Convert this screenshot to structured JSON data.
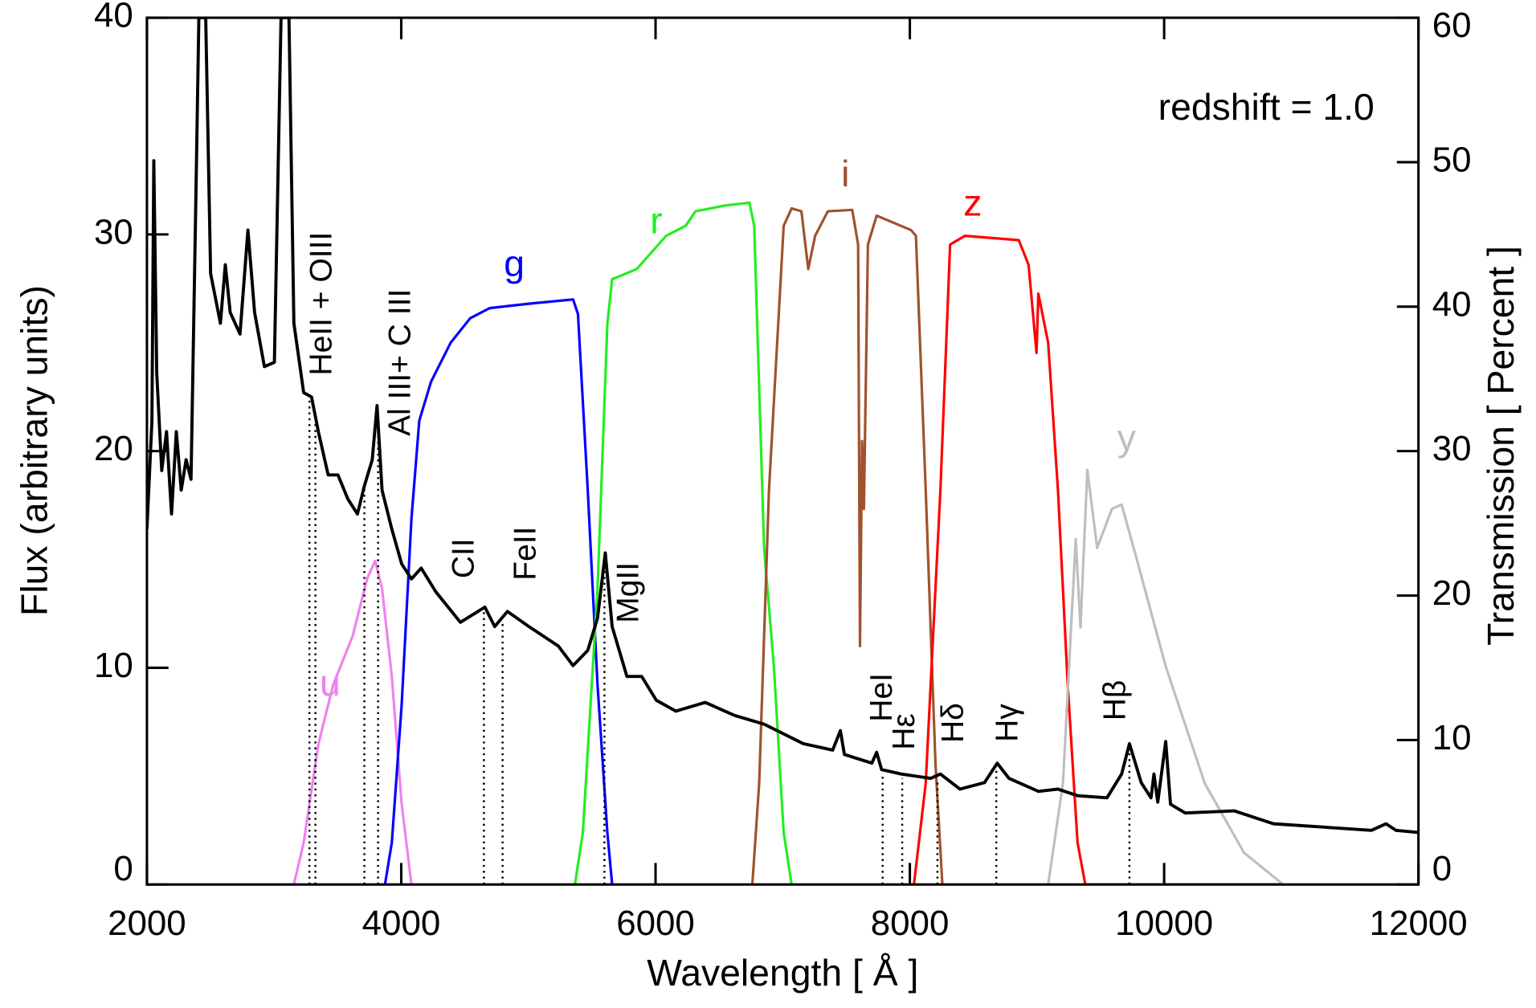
{
  "chart_data": {
    "type": "line",
    "annotation": "redshift = 1.0",
    "x_label": "Wavelength [ Å ]",
    "y_label": "Flux (arbitrary units)",
    "y2_label": "Transmission [ Percent ]",
    "xlim": [
      2000,
      12000
    ],
    "xticks": [
      2000,
      4000,
      6000,
      8000,
      10000,
      12000
    ],
    "ylim": [
      0,
      40
    ],
    "yticks": [
      0,
      10,
      20,
      30,
      40
    ],
    "y2lim": [
      0,
      60
    ],
    "y2ticks": [
      0,
      10,
      20,
      30,
      40,
      50,
      60
    ],
    "series": [
      {
        "color": "#000000",
        "x": [
          2000,
          2039,
          2054,
          2077,
          2116,
          2154,
          2193,
          2231,
          2270,
          2308,
          2347,
          2385,
          2408,
          2462,
          2501,
          2578,
          2616,
          2655,
          2732,
          2794,
          2847,
          2924,
          3002,
          3055,
          3117,
          3156,
          3233,
          3294,
          3348,
          3425,
          3502,
          3579,
          3656,
          3710,
          3772,
          3810,
          3849,
          3926,
          4003,
          4080,
          4157,
          4273,
          4465,
          4658,
          4735,
          4835,
          5005,
          5236,
          5351,
          5467,
          5544,
          5605,
          5659,
          5775,
          5891,
          6006,
          6160,
          6391,
          6622,
          6854,
          7162,
          7393,
          7454,
          7485,
          7701,
          7739,
          7778,
          7932,
          8163,
          8240,
          8394,
          8587,
          8687,
          8780,
          9011,
          9165,
          9319,
          9550,
          9666,
          9727,
          9820,
          9897,
          9920,
          9950,
          10012,
          10050,
          10166,
          10551,
          10860,
          11630,
          11745,
          11823,
          12000
        ],
        "values": [
          16.4,
          21.4,
          33.4,
          23.6,
          19.1,
          20.9,
          17.1,
          20.9,
          18.2,
          19.6,
          18.7,
          31.8,
          40,
          40,
          28.2,
          25.9,
          28.6,
          26.4,
          25.4,
          30.2,
          26.4,
          23.9,
          24.1,
          40,
          40,
          25.9,
          22.7,
          22.5,
          20.9,
          18.9,
          18.9,
          17.8,
          17.1,
          18.4,
          19.6,
          22.1,
          18.2,
          16.4,
          14.8,
          14.1,
          14.6,
          13.5,
          12.1,
          12.8,
          11.9,
          12.6,
          11.9,
          11.0,
          10.1,
          10.8,
          12.3,
          15.3,
          11.9,
          9.6,
          9.6,
          8.5,
          8.0,
          8.4,
          7.8,
          7.4,
          6.5,
          6.2,
          7.1,
          6.0,
          5.6,
          6.1,
          5.3,
          5.1,
          4.9,
          5.1,
          4.4,
          4.7,
          5.6,
          4.9,
          4.3,
          4.4,
          4.1,
          4.0,
          5.1,
          6.5,
          4.7,
          4.0,
          5.1,
          3.8,
          6.6,
          3.7,
          3.3,
          3.4,
          2.8,
          2.5,
          2.8,
          2.5,
          2.4
        ]
      },
      {
        "name": "u",
        "color": "#ee82ee",
        "axis": "y2",
        "x": [
          3156,
          3233,
          3348,
          3464,
          3618,
          3733,
          3795,
          3849,
          3926,
          4003,
          4080
        ],
        "values": [
          0,
          2.9,
          9.7,
          13.8,
          17.2,
          21.2,
          22.4,
          20.5,
          14.4,
          5.6,
          0
        ]
      },
      {
        "name": "g",
        "color": "#0000ff",
        "axis": "y2",
        "x": [
          3872,
          3926,
          4003,
          4080,
          4142,
          4234,
          4388,
          4542,
          4696,
          5005,
          5351,
          5390,
          5467,
          5544,
          5621,
          5659
        ],
        "values": [
          0,
          2.9,
          12.4,
          25.3,
          32.1,
          34.8,
          37.5,
          39.2,
          39.9,
          40.2,
          40.5,
          39.5,
          27.3,
          13.8,
          3.6,
          0
        ]
      },
      {
        "name": "r",
        "color": "#22ee22",
        "axis": "y2",
        "x": [
          5366,
          5428,
          5544,
          5621,
          5659,
          5852,
          6083,
          6237,
          6314,
          6545,
          6738,
          6776,
          6854,
          6931,
          7008,
          7070
        ],
        "values": [
          0,
          3.6,
          20.5,
          38.8,
          41.9,
          42.6,
          44.9,
          45.6,
          46.6,
          47.0,
          47.2,
          45.6,
          23.3,
          15.1,
          3.6,
          0
        ]
      },
      {
        "name": "i",
        "color": "#a0522d",
        "axis": "y2",
        "x": [
          6761,
          6815,
          6892,
          7008,
          7070,
          7147,
          7201,
          7255,
          7355,
          7547,
          7593,
          7608,
          7624,
          7639,
          7670,
          7739,
          8009,
          8048,
          8125,
          8202,
          8256
        ],
        "values": [
          0,
          7.0,
          27.3,
          45.6,
          46.8,
          46.6,
          42.6,
          44.9,
          46.6,
          46.7,
          44.3,
          16.5,
          30.7,
          26.0,
          44.3,
          46.3,
          45.3,
          44.9,
          27.3,
          8.3,
          0
        ]
      },
      {
        "name": "z",
        "color": "#ff0000",
        "axis": "y2",
        "x": [
          8032,
          8125,
          8240,
          8317,
          8433,
          8857,
          8934,
          8996,
          9011,
          9088,
          9165,
          9242,
          9319,
          9380,
          10936
        ],
        "values": [
          0,
          7.0,
          27.3,
          44.3,
          44.9,
          44.6,
          42.9,
          36.8,
          40.9,
          37.5,
          27.3,
          13.8,
          2.9,
          0,
          0
        ]
      },
      {
        "name": "y",
        "color": "#bebebe",
        "axis": "y2",
        "x": [
          9088,
          9204,
          9304,
          9342,
          9396,
          9473,
          9589,
          9666,
          9782,
          10012,
          10320,
          10628,
          10936
        ],
        "values": [
          0,
          7.0,
          23.9,
          17.8,
          28.7,
          23.3,
          26.0,
          26.3,
          22.6,
          15.1,
          7.0,
          2.2,
          0
        ]
      }
    ],
    "line_labels": [
      {
        "text": "HeII + OIII",
        "x": [
          3278,
          3325
        ]
      },
      {
        "text": "Al III+ C III",
        "x": [
          3710,
          3818
        ]
      },
      {
        "text": "CII",
        "x": [
          4650
        ]
      },
      {
        "text": "FeII",
        "x": [
          4797
        ]
      },
      {
        "text": "MgII",
        "x": [
          5598
        ]
      },
      {
        "text": "HeI",
        "x": [
          7786
        ]
      },
      {
        "text": "Hε",
        "x": [
          7940
        ]
      },
      {
        "text": "Hδ",
        "x": [
          8217
        ]
      },
      {
        "text": "Hγ",
        "x": [
          8680
        ]
      },
      {
        "text": "Hβ",
        "x": [
          9727
        ]
      }
    ]
  }
}
